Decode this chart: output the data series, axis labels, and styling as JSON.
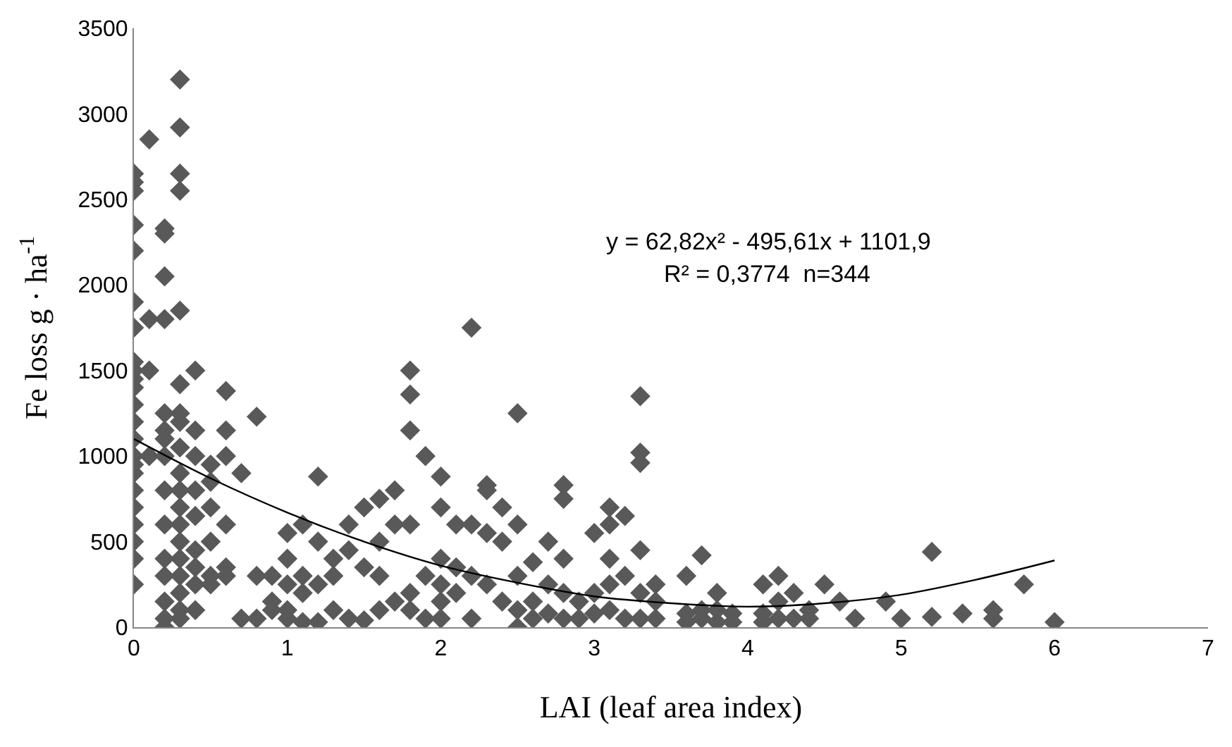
{
  "chart_data": {
    "type": "scatter",
    "xlabel": "LAI (leaf area index)",
    "ylabel": "Fe loss g · ha$^{-1}$",
    "xlim": [
      0,
      7
    ],
    "ylim": [
      0,
      3500
    ],
    "xticks": [
      0,
      1,
      2,
      3,
      4,
      5,
      6,
      7
    ],
    "yticks": [
      0,
      500,
      1000,
      1500,
      2000,
      2500,
      3000,
      3500
    ],
    "marker": "diamond",
    "annotations": [
      "y = 62,82x² - 495,61x + 1101,9",
      "R² = 0,3774  n=344"
    ],
    "series": [
      {
        "color": "#595959",
        "x": [
          0,
          0,
          0,
          0,
          0,
          0,
          0,
          0,
          0,
          0,
          0,
          0,
          0,
          0,
          0,
          0,
          0,
          0,
          0,
          0,
          0,
          0,
          0,
          0.1,
          0.1,
          0.1,
          0.1,
          0.2,
          0.2,
          0.2,
          0.2,
          0.2,
          0.2,
          0.2,
          0.2,
          0.2,
          0.2,
          0.2,
          0.2,
          0.2,
          0.2,
          0.2,
          0.3,
          0.3,
          0.3,
          0.3,
          0.3,
          0.3,
          0.3,
          0.3,
          0.3,
          0.3,
          0.3,
          0.3,
          0.3,
          0.3,
          0.3,
          0.3,
          0.3,
          0.3,
          0.3,
          0.4,
          0.4,
          0.4,
          0.4,
          0.4,
          0.4,
          0.4,
          0.4,
          0.4,
          0.5,
          0.5,
          0.5,
          0.5,
          0.5,
          0.5,
          0.6,
          0.6,
          0.6,
          0.6,
          0.6,
          0.6,
          0.7,
          0.7,
          0.8,
          0.8,
          0.8,
          0.9,
          0.9,
          0.9,
          1.0,
          1.0,
          1.0,
          1.0,
          1.0,
          1.1,
          1.1,
          1.1,
          1.1,
          1.2,
          1.2,
          1.2,
          1.2,
          1.3,
          1.3,
          1.3,
          1.4,
          1.4,
          1.4,
          1.5,
          1.5,
          1.5,
          1.6,
          1.6,
          1.6,
          1.6,
          1.7,
          1.7,
          1.7,
          1.8,
          1.8,
          1.8,
          1.8,
          1.8,
          1.8,
          1.9,
          1.9,
          1.9,
          2.0,
          2.0,
          2.0,
          2.0,
          2.0,
          2.0,
          2.1,
          2.1,
          2.1,
          2.2,
          2.2,
          2.2,
          2.2,
          2.3,
          2.3,
          2.3,
          2.3,
          2.4,
          2.4,
          2.4,
          2.5,
          2.5,
          2.5,
          2.5,
          2.5,
          2.6,
          2.6,
          2.6,
          2.7,
          2.7,
          2.7,
          2.8,
          2.8,
          2.8,
          2.8,
          2.8,
          2.9,
          2.9,
          3.0,
          3.0,
          3.0,
          3.1,
          3.1,
          3.1,
          3.1,
          3.1,
          3.2,
          3.2,
          3.2,
          3.3,
          3.3,
          3.3,
          3.3,
          3.3,
          3.3,
          3.4,
          3.4,
          3.4,
          3.6,
          3.6,
          3.6,
          3.7,
          3.7,
          3.7,
          3.8,
          3.8,
          3.8,
          3.9,
          3.9,
          4.1,
          4.1,
          4.1,
          4.2,
          4.2,
          4.2,
          4.3,
          4.3,
          4.4,
          4.4,
          4.5,
          4.6,
          4.7,
          4.9,
          5.0,
          5.2,
          5.2,
          5.4,
          5.6,
          5.6,
          5.8,
          6.0
        ],
        "values": [
          2650,
          2600,
          2550,
          2350,
          2200,
          1900,
          1750,
          1550,
          1500,
          1450,
          1400,
          1300,
          1200,
          1100,
          1000,
          950,
          900,
          800,
          700,
          600,
          500,
          400,
          250,
          2850,
          1800,
          1500,
          1000,
          2330,
          2300,
          2050,
          1800,
          1250,
          1150,
          1100,
          1000,
          800,
          600,
          400,
          300,
          150,
          50,
          0,
          3200,
          2920,
          2650,
          2550,
          1850,
          1420,
          1250,
          1200,
          1050,
          900,
          800,
          700,
          600,
          500,
          400,
          300,
          200,
          100,
          50,
          1500,
          1150,
          1000,
          800,
          650,
          450,
          350,
          250,
          100,
          950,
          850,
          700,
          500,
          300,
          250,
          1380,
          1150,
          1000,
          600,
          350,
          300,
          900,
          50,
          1230,
          300,
          50,
          300,
          150,
          100,
          550,
          400,
          250,
          100,
          50,
          600,
          300,
          200,
          30,
          880,
          500,
          250,
          30,
          400,
          300,
          100,
          600,
          450,
          50,
          700,
          350,
          40,
          750,
          500,
          300,
          100,
          800,
          600,
          150,
          1500,
          1360,
          1150,
          600,
          200,
          100,
          1000,
          300,
          50,
          880,
          700,
          400,
          250,
          150,
          50,
          600,
          350,
          200,
          1750,
          600,
          300,
          50,
          830,
          800,
          550,
          250,
          700,
          500,
          150,
          1250,
          600,
          300,
          100,
          0,
          380,
          150,
          50,
          500,
          250,
          80,
          830,
          750,
          400,
          200,
          50,
          150,
          50,
          550,
          200,
          80,
          700,
          600,
          400,
          250,
          100,
          650,
          300,
          50,
          1350,
          1020,
          960,
          450,
          200,
          50,
          250,
          150,
          50,
          300,
          80,
          30,
          420,
          100,
          50,
          200,
          100,
          30,
          80,
          30,
          250,
          80,
          30,
          300,
          150,
          50,
          200,
          50,
          100,
          50,
          250,
          150,
          50,
          150,
          50,
          440,
          60,
          80,
          100,
          50,
          250,
          30
        ]
      },
      {
        "type": "line",
        "color": "#000000",
        "line_style": "solid",
        "marker": "none",
        "x": [
          0,
          0.5,
          1,
          1.5,
          2,
          2.5,
          3,
          3.5,
          4,
          4.5,
          5,
          5.5,
          6
        ],
        "values": [
          1100,
          870,
          670,
          500,
          360,
          260,
          180,
          140,
          120,
          140,
          190,
          280,
          390
        ]
      }
    ]
  }
}
